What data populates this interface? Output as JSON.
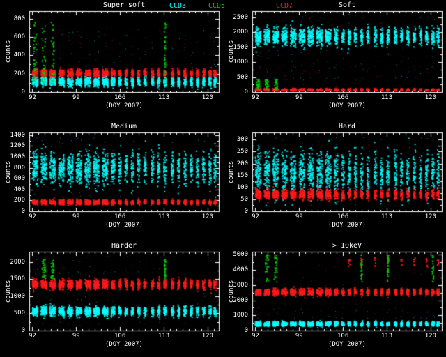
{
  "app": {
    "background": "#000000",
    "text_color": "#ffffff"
  },
  "legend": {
    "items": [
      {
        "label": "CCD3",
        "color": "#00ffff"
      },
      {
        "label": "CCD5",
        "color": "#00cc00"
      },
      {
        "label": "CCD7",
        "color": "#ff1a1a"
      }
    ]
  },
  "observation_windows_doy": [
    [
      92.0,
      92.9
    ],
    [
      93.4,
      94.3
    ],
    [
      94.8,
      95.7
    ],
    [
      96.2,
      97.1
    ],
    [
      97.6,
      98.5
    ],
    [
      99.0,
      99.9
    ],
    [
      100.4,
      101.3
    ],
    [
      101.8,
      102.7
    ],
    [
      103.2,
      104.1
    ],
    [
      104.6,
      105.2
    ],
    [
      105.8,
      106.2
    ],
    [
      106.8,
      107.2
    ],
    [
      107.8,
      108.2
    ],
    [
      108.8,
      109.2
    ],
    [
      109.8,
      110.2
    ],
    [
      111.0,
      111.4
    ],
    [
      112.0,
      112.4
    ],
    [
      113.0,
      113.4
    ],
    [
      114.2,
      114.6
    ],
    [
      115.2,
      115.6
    ],
    [
      116.2,
      116.6
    ],
    [
      117.2,
      117.6
    ],
    [
      118.2,
      118.6
    ],
    [
      119.2,
      119.6
    ],
    [
      120.2,
      120.6
    ],
    [
      121.0,
      121.4
    ]
  ],
  "chart_data": [
    {
      "type": "scatter",
      "title": "Super soft",
      "xlabel": "(DOY 2007)",
      "ylabel": "counts",
      "xlim": [
        91.5,
        121.8
      ],
      "ylim": [
        0,
        880
      ],
      "xticks": [
        92,
        99,
        106,
        113,
        120
      ],
      "yticks": [
        0,
        200,
        400,
        600,
        800
      ],
      "series": [
        {
          "name": "CCD3",
          "color": "#00ffff",
          "band_center": 112,
          "band_sigma": 26,
          "density_per_day": 110,
          "scatter_range": [
            50,
            700
          ],
          "scatter_per_day": 7
        },
        {
          "name": "CCD7",
          "color": "#ff1a1a",
          "band_center": 205,
          "band_sigma": 20,
          "density_per_day": 95,
          "scatter_range": [
            60,
            720
          ],
          "scatter_per_day": 5
        },
        {
          "name": "CCD5",
          "color": "#00cc00",
          "flare_windows": [
            0,
            1,
            2,
            17
          ],
          "flare_range": [
            90,
            760
          ],
          "flare_count": 38
        }
      ]
    },
    {
      "type": "scatter",
      "title": "Soft",
      "xlabel": "(DOY 2007)",
      "ylabel": "counts",
      "xlim": [
        91.5,
        121.8
      ],
      "ylim": [
        0,
        2700
      ],
      "xticks": [
        92,
        99,
        106,
        113,
        120
      ],
      "yticks": [
        0,
        500,
        1000,
        1500,
        2000,
        2500
      ],
      "series": [
        {
          "name": "CCD3",
          "color": "#00ffff",
          "band_center": 1850,
          "band_sigma": 140,
          "density_per_day": 115,
          "scatter_range": [
            400,
            2620
          ],
          "scatter_per_day": 10
        },
        {
          "name": "CCD7",
          "color": "#ff1a1a",
          "band_center": 60,
          "band_sigma": 26,
          "density_per_day": 95,
          "scatter_range": [
            60,
            900
          ],
          "scatter_per_day": 3
        },
        {
          "name": "CCD5",
          "color": "#00cc00",
          "flare_windows": [
            0,
            1,
            2
          ],
          "flare_range": [
            80,
            430
          ],
          "flare_count": 30
        }
      ]
    },
    {
      "type": "scatter",
      "title": "Medium",
      "xlabel": "(DOY 2007)",
      "ylabel": "counts",
      "xlim": [
        91.5,
        121.8
      ],
      "ylim": [
        0,
        1450
      ],
      "xticks": [
        92,
        99,
        106,
        113,
        120
      ],
      "yticks": [
        0,
        200,
        400,
        600,
        800,
        1000,
        1200,
        1400
      ],
      "series": [
        {
          "name": "CCD3",
          "color": "#00ffff",
          "band_center": 790,
          "band_sigma": 150,
          "density_per_day": 115,
          "scatter_range": [
            250,
            1360
          ],
          "scatter_per_day": 8
        },
        {
          "name": "CCD7",
          "color": "#ff1a1a",
          "band_center": 165,
          "band_sigma": 22,
          "density_per_day": 95,
          "scatter_range": [
            80,
            1300
          ],
          "scatter_per_day": 3
        }
      ]
    },
    {
      "type": "scatter",
      "title": "Hard",
      "xlabel": "(DOY 2007)",
      "ylabel": "counts",
      "xlim": [
        91.5,
        121.8
      ],
      "ylim": [
        0,
        330
      ],
      "xticks": [
        92,
        99,
        106,
        113,
        120
      ],
      "yticks": [
        0,
        50,
        100,
        150,
        200,
        250,
        300
      ],
      "series": [
        {
          "name": "CCD3",
          "color": "#00ffff",
          "band_center": 160,
          "band_sigma": 45,
          "density_per_day": 115,
          "scatter_range": [
            20,
            320
          ],
          "scatter_per_day": 8
        },
        {
          "name": "CCD7",
          "color": "#ff1a1a",
          "band_center": 70,
          "band_sigma": 10,
          "density_per_day": 95,
          "scatter_range": [
            20,
            300
          ],
          "scatter_per_day": 3
        }
      ]
    },
    {
      "type": "scatter",
      "title": "Harder",
      "xlabel": "(DOY 2007)",
      "ylabel": "counts",
      "xlim": [
        91.5,
        121.8
      ],
      "ylim": [
        0,
        2300
      ],
      "xticks": [
        92,
        99,
        106,
        113,
        120
      ],
      "yticks": [
        0,
        500,
        1000,
        1500,
        2000
      ],
      "series": [
        {
          "name": "CCD3",
          "color": "#00ffff",
          "band_center": 560,
          "band_sigma": 70,
          "density_per_day": 110,
          "scatter_range": [
            150,
            2100
          ],
          "scatter_per_day": 5
        },
        {
          "name": "CCD7",
          "color": "#ff1a1a",
          "band_center": 1350,
          "band_sigma": 70,
          "density_per_day": 110,
          "scatter_range": [
            150,
            2200
          ],
          "scatter_per_day": 5
        },
        {
          "name": "CCD5",
          "color": "#00cc00",
          "flare_windows": [
            1,
            2,
            17
          ],
          "flare_range": [
            1500,
            2100
          ],
          "flare_count": 32
        }
      ]
    },
    {
      "type": "scatter",
      "title": "> 10keV",
      "xlabel": "(DOY 2007)",
      "ylabel": "counts",
      "xlim": [
        91.5,
        121.8
      ],
      "ylim": [
        0,
        5200
      ],
      "xticks": [
        92,
        99,
        106,
        113,
        120
      ],
      "yticks": [
        0,
        1000,
        2000,
        3000,
        4000,
        5000
      ],
      "series": [
        {
          "name": "CCD3",
          "color": "#00ffff",
          "band_center": 430,
          "band_sigma": 70,
          "density_per_day": 110,
          "scatter_range": [
            100,
            1500
          ],
          "scatter_per_day": 4
        },
        {
          "name": "CCD7",
          "color": "#ff1a1a",
          "band_center": 2520,
          "band_sigma": 110,
          "density_per_day": 110,
          "scatter_range": [
            300,
            4900
          ],
          "scatter_per_day": 4,
          "spot_windows": [
            11,
            13,
            15,
            17,
            19,
            21,
            23,
            25
          ],
          "spot_range": [
            4200,
            4800
          ],
          "spot_count": 7
        },
        {
          "name": "CCD5",
          "color": "#00cc00",
          "flare_windows": [
            1,
            2,
            13,
            17,
            24
          ],
          "flare_range": [
            3200,
            5000
          ],
          "flare_count": 28
        }
      ]
    }
  ]
}
